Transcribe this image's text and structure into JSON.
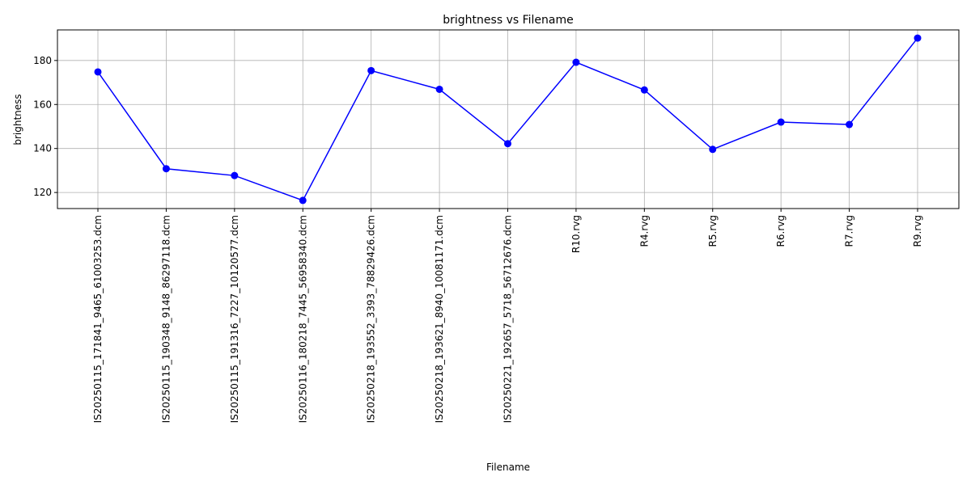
{
  "chart_data": {
    "type": "line",
    "title": "brightness vs Filename",
    "xlabel": "Filename",
    "ylabel": "brightness",
    "categories": [
      "IS20250115_171841_9465_61003253.dcm",
      "IS20250115_190348_9148_86297118.dcm",
      "IS20250115_191316_7227_10120577.dcm",
      "IS20250116_180218_7445_56958340.dcm",
      "IS20250218_193552_3393_78829426.dcm",
      "IS20250218_193621_8940_10081171.dcm",
      "IS20250221_192657_5718_56712676.dcm",
      "R10.rvg",
      "R4.rvg",
      "R5.rvg",
      "R6.rvg",
      "R7.rvg",
      "R9.rvg"
    ],
    "series": [
      {
        "values": [
          174.8,
          130.8,
          127.7,
          116.4,
          175.4,
          166.9,
          142.2,
          179.2,
          166.6,
          139.6,
          152.0,
          150.9,
          190.2
        ],
        "color": "#0000ff",
        "marker": "circle"
      }
    ],
    "ylim": [
      112.7,
      193.9
    ],
    "yticks": [
      120,
      140,
      160,
      180
    ],
    "grid": true,
    "legend": "none"
  }
}
